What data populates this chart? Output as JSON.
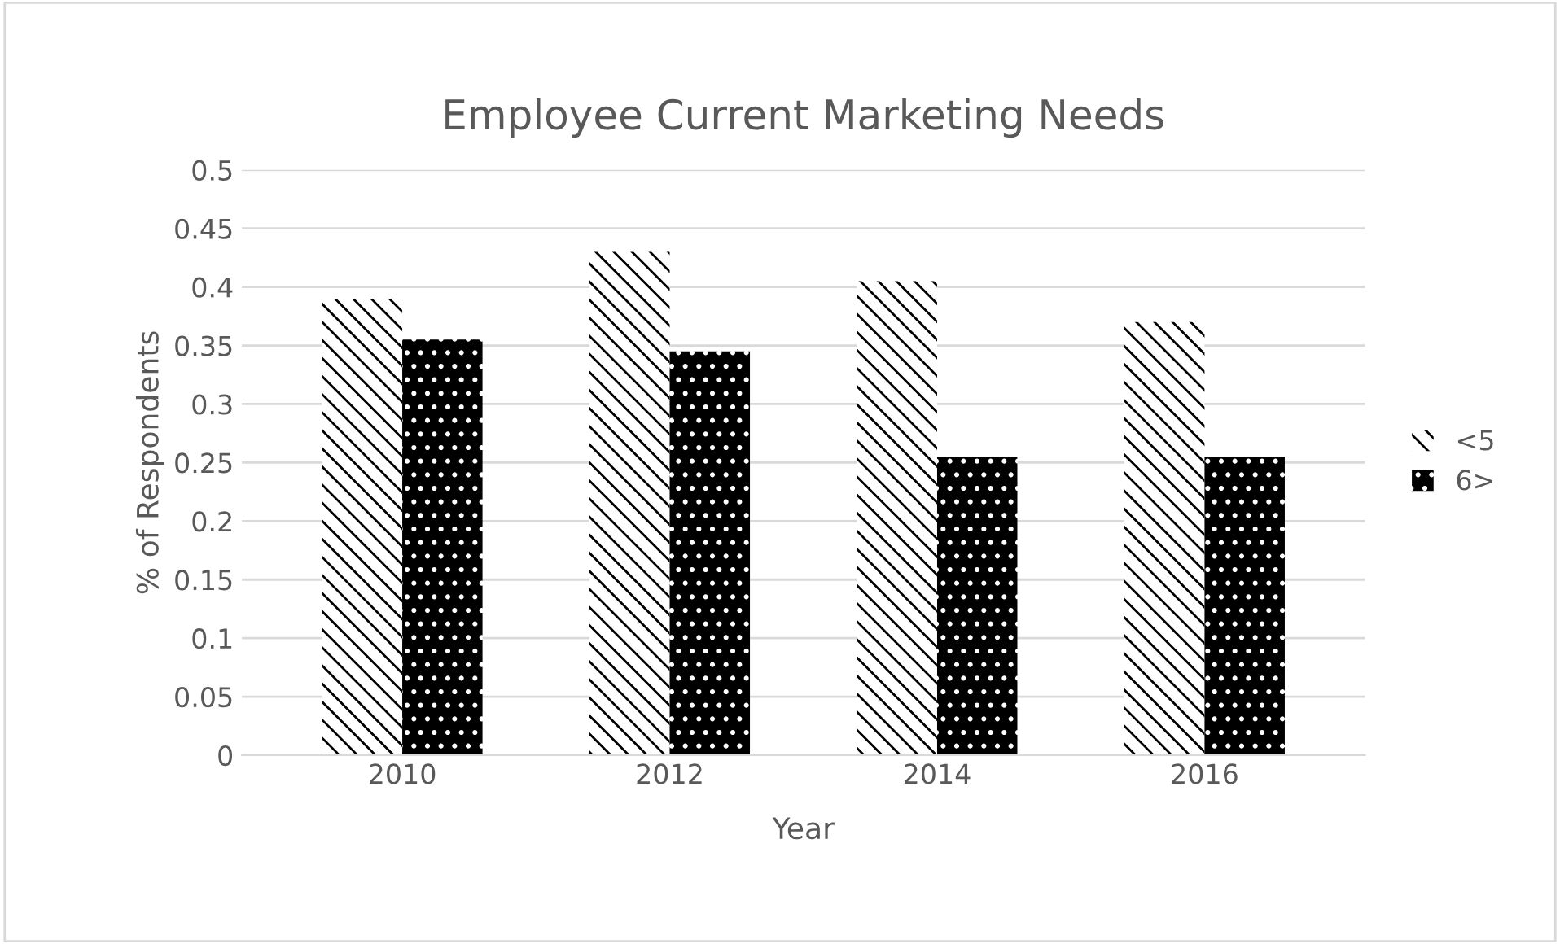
{
  "chart_data": {
    "type": "bar",
    "title": "Employee Current Marketing Needs",
    "xlabel": "Year",
    "ylabel": "% of Respondents",
    "categories": [
      "2010",
      "2012",
      "2014",
      "2016"
    ],
    "series": [
      {
        "name": "<5",
        "color": "#000000",
        "values": [
          0.39,
          0.43,
          0.405,
          0.37
        ]
      },
      {
        "name": "6>",
        "color": "#000000",
        "values": [
          0.355,
          0.345,
          0.255,
          0.255
        ]
      }
    ],
    "ylim": [
      0,
      0.5
    ],
    "yticks": [
      0,
      0.05,
      0.1,
      0.15,
      0.2,
      0.25,
      0.3,
      0.35,
      0.4,
      0.45,
      0.5
    ],
    "grid": "y",
    "legend": "right"
  }
}
